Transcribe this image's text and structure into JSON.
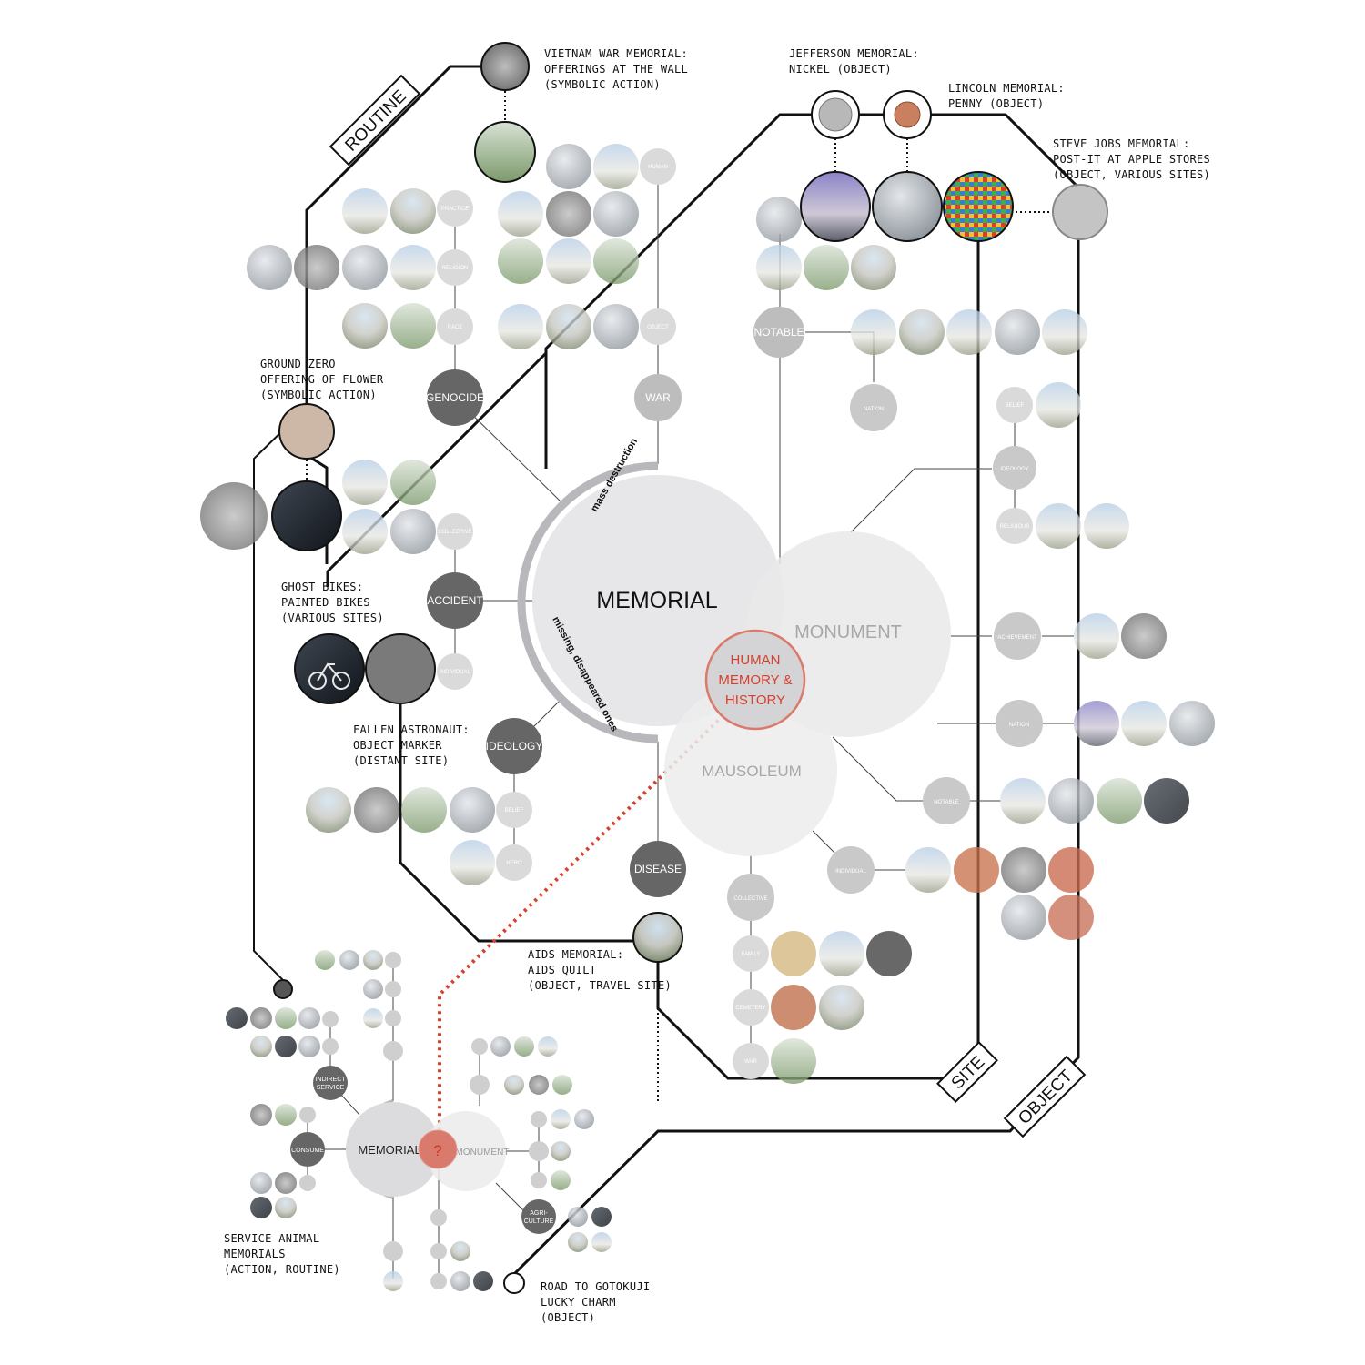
{
  "colors": {
    "line": "#111111",
    "thin_line": "#555555",
    "dark_node": "#666666",
    "mid_node": "#bdbdbd",
    "light_node": "#d4d4d4",
    "memorial_circle": "#e7e7e9",
    "monument_circle": "#eeeeee",
    "highlight_red": "#d6402e",
    "highlight_fill": "#d97a6c",
    "highlight_ring": "#a6a6a6"
  },
  "venn": {
    "memorial": "MEMORIAL",
    "monument": "MONUMENT",
    "mausoleum": "MAUSOLEUM",
    "human_memory": [
      "HUMAN",
      "MEMORY &",
      "HISTORY"
    ],
    "arc_upper": "mass destruction",
    "arc_lower": "missing, disappeared ones"
  },
  "tracks": {
    "routine": "ROUTINE",
    "site": "SITE",
    "object": "OBJECT"
  },
  "categories": {
    "genocide": "GENOCIDE",
    "war": "WAR",
    "accident": "ACCIDENT",
    "ideology": "IDEOLOGY",
    "disease": "DISEASE",
    "notable": "NOTABLE"
  },
  "subcategories": {
    "practice": "PRACTICE",
    "religion": "RELIGION",
    "race": "RACE",
    "human": "HUMAN",
    "object": "OBJECT",
    "collective": "COLLECTIVE",
    "individual": "INDIVIDUAL",
    "belief": "BELIEF",
    "hero": "HERO",
    "nation_top": "NATION",
    "belief_right": "BELIEF",
    "ideology_right": "IDEOLOGY",
    "religious": "RELIGIOUS",
    "achievement": "ACHIEVEMENT",
    "nation_right": "NATION",
    "notable_right": "NOTABLE",
    "individual_right": "INDIVIDUAL",
    "collective_bottom": "COLLECTIVE",
    "family": "FAMILY",
    "cemetery": "CEMETERY",
    "war_bottom": "WAR"
  },
  "annotations": {
    "vietnam": [
      "VIETNAM WAR MEMORIAL:",
      "OFFERINGS AT THE WALL",
      "(SYMBOLIC ACTION)"
    ],
    "jefferson": [
      "JEFFERSON MEMORIAL:",
      "NICKEL (OBJECT)"
    ],
    "lincoln": [
      "LINCOLN MEMORIAL:",
      "PENNY (OBJECT)"
    ],
    "steve_jobs": [
      "STEVE JOBS MEMORIAL:",
      "POST-IT AT APPLE STORES",
      "(OBJECT, VARIOUS SITES)"
    ],
    "ground_zero": [
      "GROUND ZERO",
      "OFFERING OF FLOWER",
      "(SYMBOLIC ACTION)"
    ],
    "ghost_bikes": [
      "GHOST BIKES:",
      "PAINTED BIKES",
      "(VARIOUS SITES)"
    ],
    "fallen_astronaut": [
      "FALLEN ASTRONAUT:",
      "OBJECT MARKER",
      "(DISTANT SITE)"
    ],
    "aids": [
      "AIDS MEMORIAL:",
      "AIDS QUILT",
      "(OBJECT, TRAVEL SITE)"
    ],
    "service_animal": [
      "SERVICE ANIMAL",
      "MEMORIALS",
      "(ACTION, ROUTINE)"
    ],
    "gotokuji": [
      "ROAD TO GOTOKUJI",
      "LUCKY CHARM",
      "(OBJECT)"
    ]
  },
  "mini_diagram": {
    "memorial": "MEMORIAL",
    "monument": "MONUMENT",
    "question": "?",
    "indirect_service": [
      "INDIRECT",
      "SERVICE"
    ],
    "consume": "CONSUME",
    "agriculture": [
      "AGRI-",
      "CULTURE"
    ]
  }
}
